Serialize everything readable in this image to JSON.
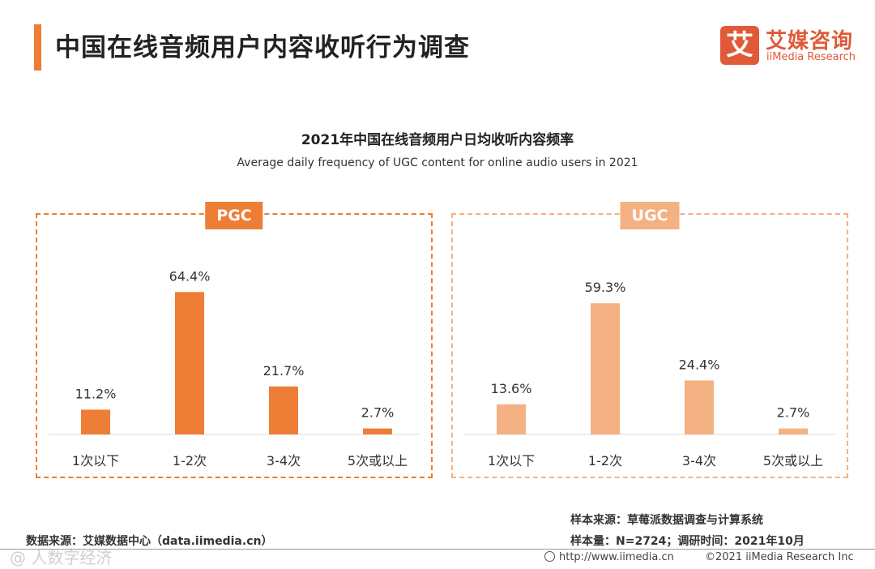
{
  "header": {
    "title": "中国在线音频用户内容收听行为调查",
    "accent_color": "#ee7d35"
  },
  "logo": {
    "mark": "艾",
    "name_cn": "艾媒咨询",
    "name_en": "iiMedia Research",
    "color": "#e05a38"
  },
  "chart_data": [
    {
      "type": "bar",
      "panel": "PGC",
      "title": "2021年中国在线音频用户日均收听内容频率",
      "subtitle": "Average daily frequency of UGC content for online audio users in 2021",
      "categories": [
        "1次以下",
        "1-2次",
        "3-4次",
        "5次或以上"
      ],
      "values": [
        11.2,
        64.4,
        21.7,
        2.7
      ],
      "labels": [
        "11.2%",
        "64.4%",
        "21.7%",
        "2.7%"
      ],
      "unit": "%",
      "ylim": [
        0,
        70
      ],
      "color": "#ee7d35"
    },
    {
      "type": "bar",
      "panel": "UGC",
      "categories": [
        "1次以下",
        "1-2次",
        "3-4次",
        "5次或以上"
      ],
      "values": [
        13.6,
        59.3,
        24.4,
        2.7
      ],
      "labels": [
        "13.6%",
        "59.3%",
        "24.4%",
        "2.7%"
      ],
      "unit": "%",
      "ylim": [
        0,
        70
      ],
      "color": "#f4b183"
    }
  ],
  "footer": {
    "data_source": "数据来源：艾媒数据中心（data.iimedia.cn）",
    "sample_source": "样本来源：草莓派数据调查与计算系统",
    "sample_size": "样本量：N=2724；调研时间：2021年10月",
    "url": "http://www.iimedia.cn",
    "copyright": "©2021  iiMedia Research  Inc",
    "watermark": "@ 人数字经济"
  }
}
